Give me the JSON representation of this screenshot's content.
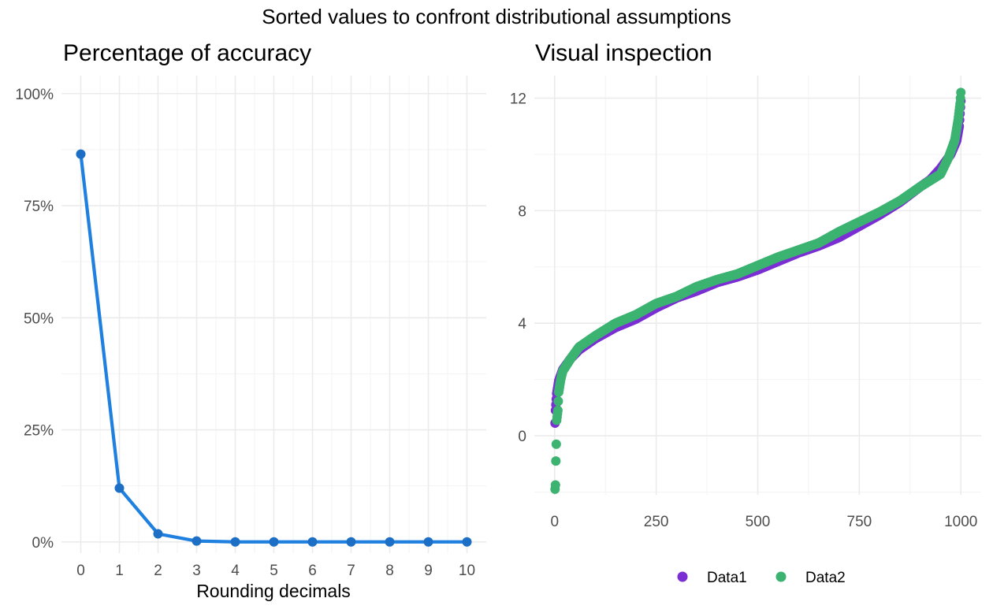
{
  "figure": {
    "title": "Sorted values to confront distributional assumptions"
  },
  "chart_data": [
    {
      "type": "line",
      "title": "Percentage of accuracy",
      "xlabel": "Rounding decimals",
      "ylabel": "",
      "x": [
        0,
        1,
        2,
        3,
        4,
        5,
        6,
        7,
        8,
        9,
        10
      ],
      "series": [
        {
          "values": [
            86.5,
            12.0,
            1.8,
            0.2,
            0.0,
            0.0,
            0.0,
            0.0,
            0.0,
            0.0,
            0.0
          ],
          "color": "#1f80e0"
        }
      ],
      "xlim": [
        -0.5,
        10.5
      ],
      "ylim": [
        -2.5,
        104
      ],
      "xticks": [
        "0",
        "1",
        "2",
        "3",
        "4",
        "5",
        "6",
        "7",
        "8",
        "9",
        "10"
      ],
      "yticks": [
        0,
        25,
        50,
        75,
        100
      ],
      "ytick_labels": [
        "0%",
        "25%",
        "50%",
        "75%",
        "100%"
      ],
      "grid": true
    },
    {
      "type": "scatter",
      "title": "Visual inspection",
      "xlabel": "",
      "ylabel": "",
      "n_points": 1000,
      "xlim": [
        -50,
        1050
      ],
      "ylim": [
        -2.1,
        12.8
      ],
      "xticks": [
        0,
        250,
        500,
        750,
        1000
      ],
      "yticks": [
        0,
        4,
        8,
        12
      ],
      "grid": true,
      "legend_position": "bottom",
      "series": [
        {
          "name": "Data1",
          "color": "#7b2fd3",
          "curve": [
            [
              1,
              0.45
            ],
            [
              2,
              0.9
            ],
            [
              5,
              1.5
            ],
            [
              10,
              1.95
            ],
            [
              20,
              2.35
            ],
            [
              40,
              2.75
            ],
            [
              60,
              3.05
            ],
            [
              100,
              3.45
            ],
            [
              150,
              3.85
            ],
            [
              200,
              4.15
            ],
            [
              250,
              4.55
            ],
            [
              300,
              4.9
            ],
            [
              350,
              5.15
            ],
            [
              400,
              5.45
            ],
            [
              450,
              5.65
            ],
            [
              500,
              5.9
            ],
            [
              550,
              6.2
            ],
            [
              600,
              6.5
            ],
            [
              650,
              6.75
            ],
            [
              700,
              7.05
            ],
            [
              750,
              7.45
            ],
            [
              800,
              7.85
            ],
            [
              850,
              8.3
            ],
            [
              900,
              8.85
            ],
            [
              925,
              9.1
            ],
            [
              950,
              9.5
            ],
            [
              975,
              10.0
            ],
            [
              990,
              10.5
            ],
            [
              996,
              11.0
            ],
            [
              1000,
              11.9
            ]
          ]
        },
        {
          "name": "Data2",
          "color": "#3cb371",
          "curve": [
            [
              1,
              -1.9
            ],
            [
              2,
              -1.75
            ],
            [
              3,
              -0.9
            ],
            [
              4,
              -0.3
            ],
            [
              5,
              0.55
            ],
            [
              8,
              0.9
            ],
            [
              10,
              1.55
            ],
            [
              15,
              2.0
            ],
            [
              20,
              2.3
            ],
            [
              40,
              2.75
            ],
            [
              60,
              3.15
            ],
            [
              100,
              3.55
            ],
            [
              150,
              4.0
            ],
            [
              200,
              4.3
            ],
            [
              250,
              4.7
            ],
            [
              300,
              4.95
            ],
            [
              350,
              5.3
            ],
            [
              400,
              5.55
            ],
            [
              450,
              5.75
            ],
            [
              500,
              6.05
            ],
            [
              550,
              6.35
            ],
            [
              600,
              6.6
            ],
            [
              650,
              6.85
            ],
            [
              700,
              7.25
            ],
            [
              750,
              7.6
            ],
            [
              800,
              7.95
            ],
            [
              850,
              8.35
            ],
            [
              900,
              8.85
            ],
            [
              950,
              9.3
            ],
            [
              970,
              9.9
            ],
            [
              985,
              10.5
            ],
            [
              993,
              11.2
            ],
            [
              998,
              11.8
            ],
            [
              1000,
              12.2
            ]
          ]
        }
      ]
    }
  ]
}
